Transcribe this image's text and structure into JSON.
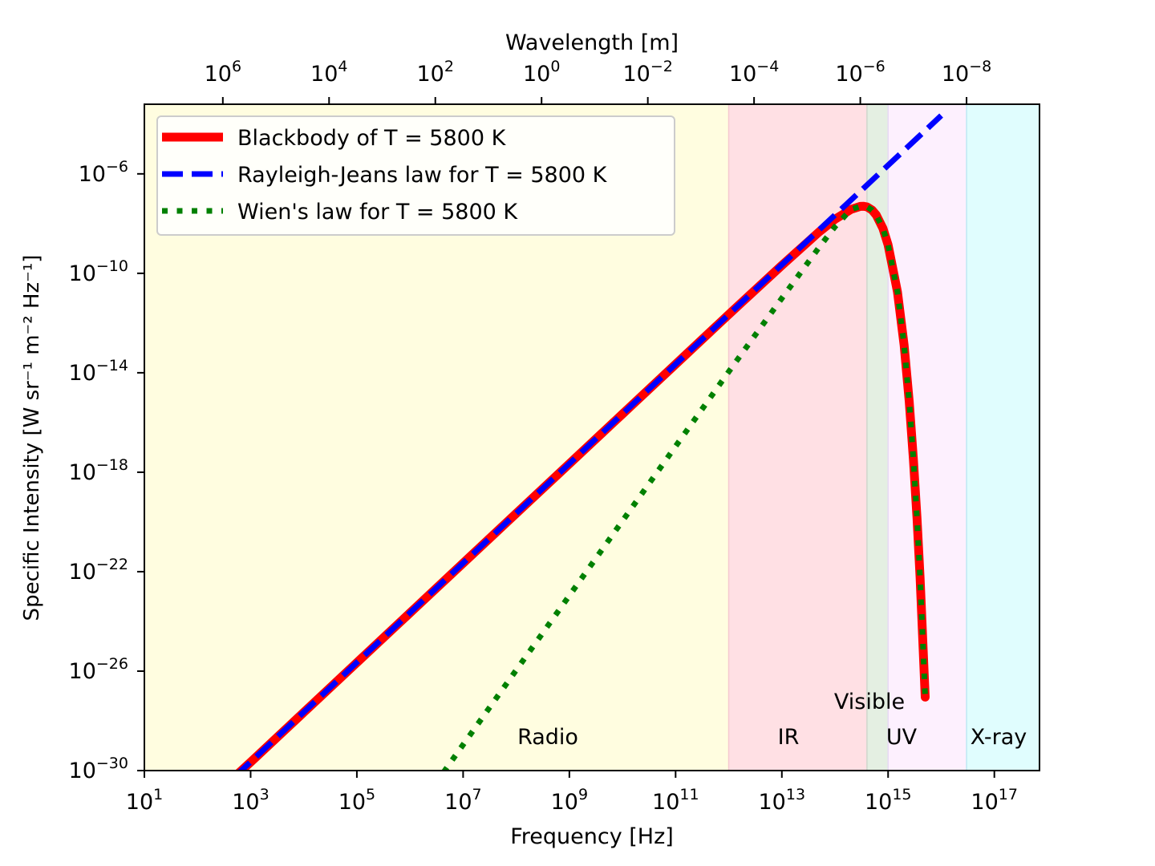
{
  "chart_data": {
    "type": "line",
    "title": "",
    "xlabel": "Frequency [Hz]",
    "ylabel": "Specific Intensity [W sr⁻¹ m⁻² Hz⁻¹]",
    "x2label": "Wavelength [m]",
    "xscale": "log",
    "yscale": "log",
    "xlim_log10": [
      1,
      17.85
    ],
    "ylim_log10": [
      -30,
      -3.2
    ],
    "grid": false,
    "legend_position": "upper left",
    "temperature_K": 5800,
    "x_ticks": [
      {
        "base": "10",
        "exp": "1",
        "value": 10.0
      },
      {
        "base": "10",
        "exp": "3",
        "value": 1000.0
      },
      {
        "base": "10",
        "exp": "5",
        "value": 100000.0
      },
      {
        "base": "10",
        "exp": "7",
        "value": 10000000.0
      },
      {
        "base": "10",
        "exp": "9",
        "value": 1000000000.0
      },
      {
        "base": "10",
        "exp": "11",
        "value": 100000000000.0
      },
      {
        "base": "10",
        "exp": "13",
        "value": 10000000000000.0
      },
      {
        "base": "10",
        "exp": "15",
        "value": 1000000000000000.0
      },
      {
        "base": "10",
        "exp": "17",
        "value": 1e+17
      }
    ],
    "y_ticks": [
      {
        "base": "10",
        "exp": "−6",
        "value": 1e-06
      },
      {
        "base": "10",
        "exp": "−10",
        "value": 1e-10
      },
      {
        "base": "10",
        "exp": "−14",
        "value": 1e-14
      },
      {
        "base": "10",
        "exp": "−18",
        "value": 1e-18
      },
      {
        "base": "10",
        "exp": "−22",
        "value": 1e-22
      },
      {
        "base": "10",
        "exp": "−26",
        "value": 1e-26
      },
      {
        "base": "10",
        "exp": "−30",
        "value": 1e-30
      }
    ],
    "x2_ticks": [
      {
        "base": "10",
        "exp": "6",
        "value": 1000000.0
      },
      {
        "base": "10",
        "exp": "4",
        "value": 10000.0
      },
      {
        "base": "10",
        "exp": "2",
        "value": 100.0
      },
      {
        "base": "10",
        "exp": "0",
        "value": 1.0
      },
      {
        "base": "10",
        "exp": "−2",
        "value": 0.01
      },
      {
        "base": "10",
        "exp": "−4",
        "value": 0.0001
      },
      {
        "base": "10",
        "exp": "−6",
        "value": 1e-06
      },
      {
        "base": "10",
        "exp": "−8",
        "value": 1e-08
      }
    ],
    "bands": [
      {
        "name": "Radio",
        "x_start": 10.0,
        "x_end": 1000000000000.0,
        "color": "#fffde0",
        "edge": "#ffe7a8"
      },
      {
        "name": "IR",
        "x_start": 1000000000000.0,
        "x_end": 400000000000000.0,
        "color": "#ffe0e4",
        "edge": "#f5c9d0"
      },
      {
        "name": "Visible",
        "x_start": 400000000000000.0,
        "x_end": 1000000000000000.0,
        "color": "#e4efe2",
        "edge": "#cfd6cc"
      },
      {
        "name": "UV",
        "x_start": 1000000000000000.0,
        "x_end": 3e+16,
        "color": "#fdf0fe",
        "edge": "#e7d9f4"
      },
      {
        "name": "X-ray",
        "x_start": 3e+16,
        "x_end": 7e+17,
        "color": "#e0fdfe",
        "edge": "#bde9f3"
      }
    ],
    "series": [
      {
        "name": "Blackbody of T = 5800 K",
        "style": "solid",
        "color": "#ff0000",
        "x": [
          500.0,
          1000.0,
          10000.0,
          100000.0,
          1000000.0,
          10000000.0,
          100000000.0,
          1000000000.0,
          10000000000.0,
          100000000000.0,
          1000000000000.0,
          10000000000000.0,
          50000000000000.0,
          100000000000000.0,
          200000000000000.0,
          300000000000000.0,
          340000000000000.0,
          400000000000000.0,
          500000000000000.0,
          600000000000000.0,
          800000000000000.0,
          1000000000000000.0,
          1500000000000000.0,
          2000000000000000.0,
          2500000000000000.0,
          3000000000000000.0,
          3500000000000000.0,
          4000000000000000.0,
          5000000000000000.0
        ],
        "y": [
          5.6e-31,
          2.2e-30,
          2.2e-28,
          2.2e-26,
          2.2e-24,
          2.2e-22,
          2.2e-20,
          2.2e-18,
          2.2e-16,
          2.2e-14,
          2.2e-12,
          2.1e-10,
          4.6e-09,
          1.5e-08,
          3.7e-08,
          4.9e-08,
          5e-08,
          4.7e-08,
          3.5e-08,
          2.2e-08,
          6.4e-09,
          1.4e-09,
          1.8e-11,
          1.3e-13,
          6.8e-16,
          3.2e-18,
          1.4e-20,
          6e-23,
          9e-28
        ]
      },
      {
        "name": "Rayleigh-Jeans law for T = 5800 K",
        "style": "dashed",
        "color": "#0000ff",
        "x": [
          500.0,
          1e+16
        ],
        "y": [
          5.6e-31,
          0.000222
        ]
      },
      {
        "name": "Wien's law for T = 5800 K",
        "style": "dotted",
        "color": "#008000",
        "x": [
          4300000.0,
          10000000.0,
          100000000.0,
          1000000000.0,
          10000000000.0,
          100000000000.0,
          1000000000000.0,
          10000000000000.0,
          50000000000000.0,
          100000000000000.0,
          200000000000000.0,
          300000000000000.0,
          340000000000000.0,
          400000000000000.0,
          500000000000000.0,
          600000000000000.0,
          800000000000000.0,
          1000000000000000.0,
          1500000000000000.0,
          2000000000000000.0,
          2500000000000000.0,
          3000000000000000.0,
          3500000000000000.0,
          4000000000000000.0,
          5000000000000000.0
        ],
        "y": [
          8.6e-31,
          1.1e-29,
          1.1e-26,
          1.1e-23,
          1.1e-20,
          1.1e-17,
          1.1e-14,
          1e-11,
          1.1e-09,
          7.5e-09,
          3.7e-08,
          4.9e-08,
          5e-08,
          4.7e-08,
          3.5e-08,
          2.2e-08,
          6.4e-09,
          1.4e-09,
          1.8e-11,
          1.3e-13,
          6.8e-16,
          3.2e-18,
          1.4e-20,
          6e-23,
          9e-28
        ]
      }
    ]
  }
}
